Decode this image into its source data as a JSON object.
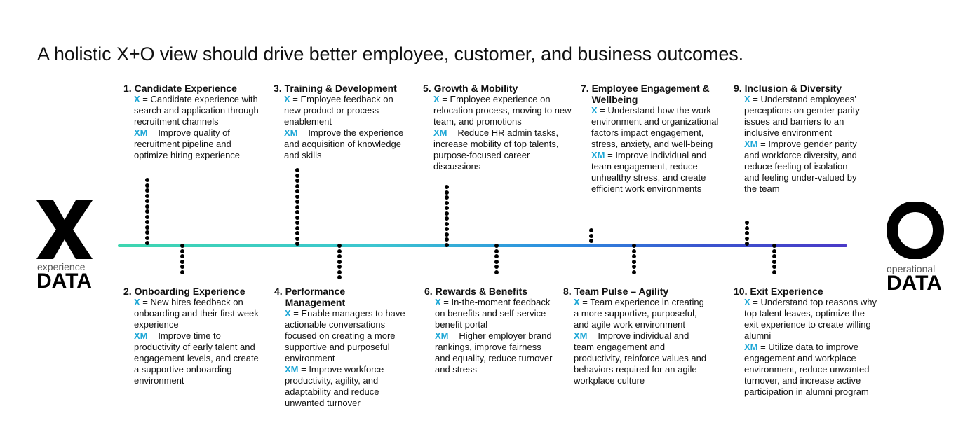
{
  "title": "A holistic X+O view should drive better employee, customer, and business outcomes.",
  "left_brand": {
    "mark": "X",
    "sub": "experience",
    "word": "DATA"
  },
  "right_brand": {
    "mark": "O",
    "sub": "operational",
    "word": "DATA"
  },
  "colors": {
    "x_label": "#1ea7d6",
    "timeline_start": "#3ed6b0",
    "timeline_end": "#4a39c8"
  },
  "stages": [
    {
      "num": "1.",
      "title": "Candidate Experience",
      "x_label": "X",
      "x_text": " = Candidate experience with search and application through recruitment channels",
      "xm_label": "XM",
      "xm_text": " = Improve quality of recruitment pipeline and optimize hiring experience"
    },
    {
      "num": "2.",
      "title": "Onboarding Experience",
      "x_label": "X",
      "x_text": " = New hires feedback on onboarding and their first week experience",
      "xm_label": "XM",
      "xm_text": " = Improve time to productivity of early talent and engagement levels, and create a supportive onboarding environment"
    },
    {
      "num": "3.",
      "title": "Training & Development",
      "x_label": "X",
      "x_text": " = Employee feedback on new product or process enablement",
      "xm_label": "XM",
      "xm_text": " = Improve the experience and acquisition of knowledge and skills"
    },
    {
      "num": "4.",
      "title": "Performance Management",
      "x_label": "X",
      "x_text": " = Enable managers to have actionable conversations focused on creating a more supportive and purposeful environment",
      "xm_label": "XM",
      "xm_text": " = Improve workforce productivity, agility, and adaptability and reduce unwanted turnover"
    },
    {
      "num": "5.",
      "title": "Growth & Mobility",
      "x_label": "X",
      "x_text": " = Employee experience on relocation process, moving to new team, and promotions",
      "xm_label": "XM",
      "xm_text": " = Reduce HR admin tasks, increase mobility of top talents, purpose-focused career discussions"
    },
    {
      "num": "6.",
      "title": "Rewards & Benefits",
      "x_label": "X",
      "x_text": " = In-the-moment feedback on benefits and self-service benefit portal",
      "xm_label": "XM",
      "xm_text": " = Higher employer brand rankings, improve fairness and equality, reduce turnover and stress"
    },
    {
      "num": "7.",
      "title": "Employee Engagement & Wellbeing",
      "x_label": "X",
      "x_text": " = Understand how the work environment and organizational factors impact engagement, stress, anxiety, and well-being",
      "xm_label": "XM",
      "xm_text": " = Improve individual and team engagement, reduce unhealthy stress, and create efficient work environments"
    },
    {
      "num": "8.",
      "title": "Team Pulse – Agility",
      "x_label": "X",
      "x_text": " = Team experience in creating a more supportive, purposeful, and agile work environment",
      "xm_label": "XM",
      "xm_text": " = Improve individual and team engagement and productivity, reinforce values and behaviors required for an agile workplace culture"
    },
    {
      "num": "9.",
      "title": "Inclusion & Diversity",
      "x_label": "X",
      "x_text": " = Understand employees’ perceptions on gender parity issues and barriers to an inclusive environment",
      "xm_label": "XM",
      "xm_text": " = Improve gender parity and workforce diversity, and reduce feeling of isolation and feeling under-valued by the team"
    },
    {
      "num": "10.",
      "title": "Exit Experience",
      "x_label": "X",
      "x_text": " = Understand top reasons why top talent leaves, optimize the exit experience to create willing alumni",
      "xm_label": "XM",
      "xm_text": " = Utilize data to improve engagement and workplace environment, reduce unwanted turnover, and increase active participation in alumni program"
    }
  ]
}
